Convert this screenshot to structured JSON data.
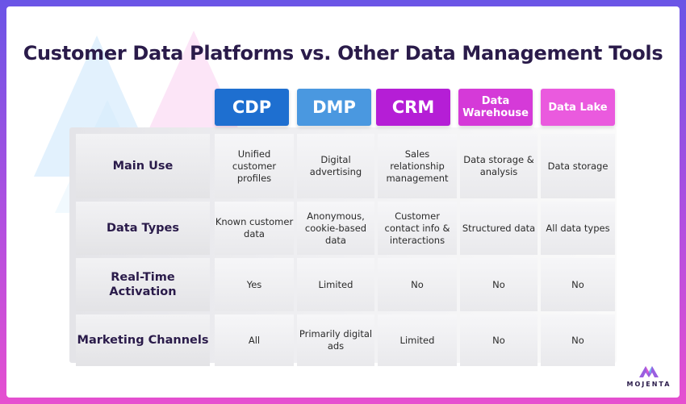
{
  "title": "Customer Data Platforms vs. Other Data Management Tools",
  "columns": [
    {
      "label": "CDP",
      "color": "#1e6fd0"
    },
    {
      "label": "DMP",
      "color": "#4a98e0"
    },
    {
      "label": "CRM",
      "color": "#b51ed6"
    },
    {
      "label": "Data Warehouse",
      "color": "#d53ad8"
    },
    {
      "label": "Data Lake",
      "color": "#ea5ade"
    }
  ],
  "rows": [
    {
      "label": "Main Use",
      "cells": [
        "Unified customer profiles",
        "Digital advertising",
        "Sales relationship management",
        "Data storage & analysis",
        "Data storage"
      ]
    },
    {
      "label": "Data Types",
      "cells": [
        "Known customer data",
        "Anonymous, cookie-based data",
        "Customer contact info & interactions",
        "Structured data",
        "All data types"
      ]
    },
    {
      "label": "Real-Time Activation",
      "cells": [
        "Yes",
        "Limited",
        "No",
        "No",
        "No"
      ]
    },
    {
      "label": "Marketing Channels",
      "cells": [
        "All",
        "Primarily digital ads",
        "Limited",
        "No",
        "No"
      ]
    }
  ],
  "brand": {
    "name": "MOJENTA",
    "logo_icon": "mojenta-m-logo-icon"
  }
}
